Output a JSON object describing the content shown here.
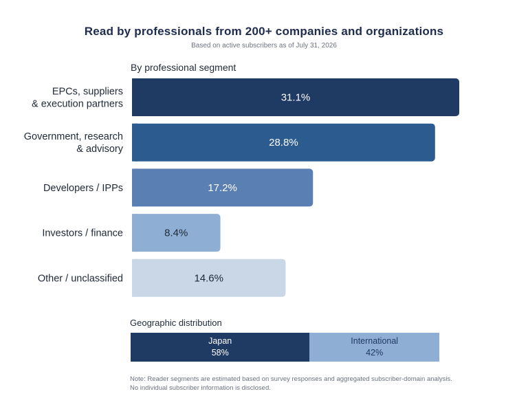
{
  "header": {
    "title": "Read by professionals from 200+ companies and organizations",
    "subtitle": "Based on active subscribers as of July 31, 2026"
  },
  "segment_section": {
    "label": "By professional segment"
  },
  "geo_section": {
    "label": "Geographic distribution"
  },
  "chart_data": [
    {
      "type": "bar",
      "orientation": "horizontal",
      "title": "By professional segment",
      "categories": [
        [
          "EPCs, suppliers",
          "& execution partners"
        ],
        [
          "Government, research",
          "& advisory"
        ],
        [
          "Developers / IPPs"
        ],
        [
          "Investors / finance"
        ],
        [
          "Other / unclassified"
        ]
      ],
      "values": [
        31.1,
        28.8,
        17.2,
        8.4,
        14.6
      ],
      "value_labels": [
        "31.1%",
        "28.8%",
        "17.2%",
        "8.4%",
        "14.6%"
      ],
      "colors": [
        "#1f3a63",
        "#2c5c8f",
        "#5a7fb3",
        "#8eaed4",
        "#c9d7e6"
      ],
      "label_colors": [
        "#ffffff",
        "#ffffff",
        "#ffffff",
        "#1f2937",
        "#1f2937"
      ],
      "xlim": [
        0,
        31.1
      ]
    },
    {
      "type": "bar",
      "orientation": "horizontal",
      "stacked": true,
      "title": "Geographic distribution",
      "series": [
        {
          "name": "Japan",
          "value": 58,
          "label": "58%",
          "color": "#1f3a63",
          "text_color": "#ffffff"
        },
        {
          "name": "International",
          "value": 42,
          "label": "42%",
          "color": "#8eaed4",
          "text_color": "#1f3a63"
        }
      ]
    }
  ],
  "footer": {
    "note_line1": "Note: Reader segments are estimated based on survey responses and aggregated subscriber-domain analysis.",
    "note_line2": "No individual subscriber information is disclosed."
  }
}
